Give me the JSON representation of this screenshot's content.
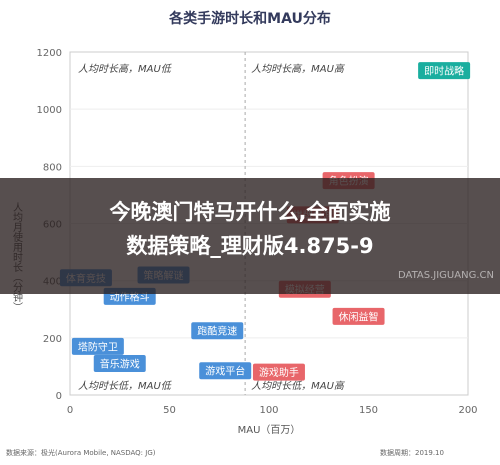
{
  "chart_data": {
    "type": "scatter",
    "title": "各类手游时长和MAU分布",
    "xlabel": "MAU（百万）",
    "ylabel": "人均月使用时长（分钟）",
    "xlim": [
      0,
      200
    ],
    "ylim": [
      0,
      1200
    ],
    "xticks": [
      0,
      50,
      100,
      150,
      200
    ],
    "yticks": [
      0,
      200,
      400,
      600,
      800,
      1000,
      1200
    ],
    "divider_x": 88,
    "quadrants": {
      "top_left": "人均时长高，MAU低",
      "top_right": "人均时长高，MAU高",
      "bottom_left": "人均时长低，MAU低",
      "bottom_right": "人均时长低，MAU高"
    },
    "points": [
      {
        "label": "即时战略",
        "x": 188,
        "y": 1135,
        "color": "#1aae9f"
      },
      {
        "label": "体育竞技",
        "x": 8,
        "y": 410,
        "color": "#4a90d9"
      },
      {
        "label": "策略解谜",
        "x": 47,
        "y": 420,
        "color": "#4a90d9"
      },
      {
        "label": "动作格斗",
        "x": 30,
        "y": 345,
        "color": "#4a90d9"
      },
      {
        "label": "跑酷竞速",
        "x": 74,
        "y": 225,
        "color": "#4a90d9"
      },
      {
        "label": "塔防守卫",
        "x": 14,
        "y": 170,
        "color": "#4a90d9"
      },
      {
        "label": "音乐游戏",
        "x": 25,
        "y": 110,
        "color": "#4a90d9"
      },
      {
        "label": "游戏平台",
        "x": 78,
        "y": 85,
        "color": "#4a90d9"
      },
      {
        "label": "模拟经营",
        "x": 118,
        "y": 370,
        "color": "#e8666a"
      },
      {
        "label": "休闲益智",
        "x": 145,
        "y": 275,
        "color": "#e8666a"
      },
      {
        "label": "游戏助手",
        "x": 105,
        "y": 80,
        "color": "#e8666a"
      },
      {
        "label": "角色扮演",
        "x": 140,
        "y": 750,
        "color": "#e8666a"
      },
      {
        "label": "棋牌桌游",
        "x": 122,
        "y": 630,
        "color": "#e8666a"
      }
    ]
  },
  "banner": {
    "line1": "今晚澳门特马开什么,全面实施",
    "line2": "数据策略_理财版4.875-9"
  },
  "watermark": "DATAS.JIGUANG.CN",
  "footer": {
    "source": "数据来源：极光(Aurora Mobile, NASDAQ: JG)",
    "date": "数据周期：2019.10"
  }
}
